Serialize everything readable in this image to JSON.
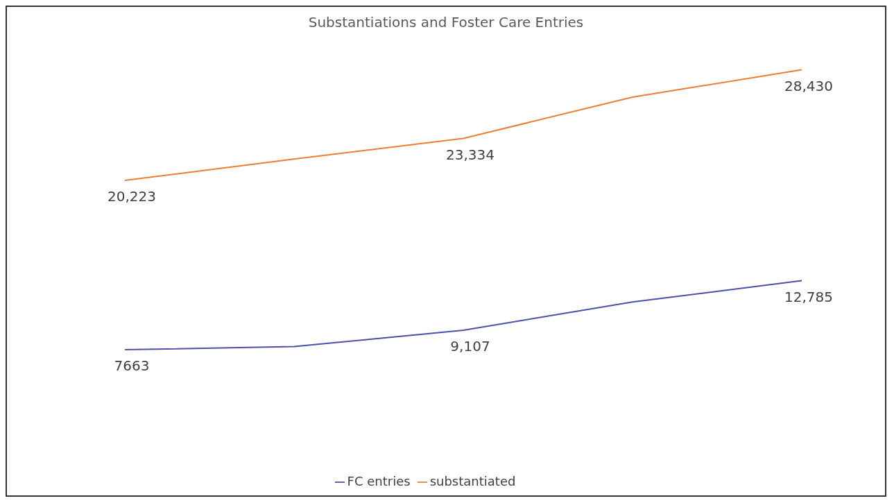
{
  "chart_data": {
    "type": "line",
    "title": "Substantiations and Foster Care Entries",
    "categories": [
      null,
      null,
      null,
      null,
      null
    ],
    "series": [
      {
        "name": "substantiated",
        "color": "#ed7d31",
        "values": [
          20223,
          21800,
          23334,
          26400,
          28430
        ],
        "value_labels": [
          "20,223",
          null,
          "23,334",
          null,
          "28,430"
        ]
      },
      {
        "name": "FC entries",
        "color": "#4a4fa8",
        "values": [
          7663,
          7900,
          9107,
          11200,
          12785
        ],
        "value_labels": [
          "7663",
          null,
          "9,107",
          null,
          "12,785"
        ]
      }
    ],
    "tick_labels": false,
    "legend": "bottom",
    "marker": "none",
    "line_style": "solid"
  }
}
